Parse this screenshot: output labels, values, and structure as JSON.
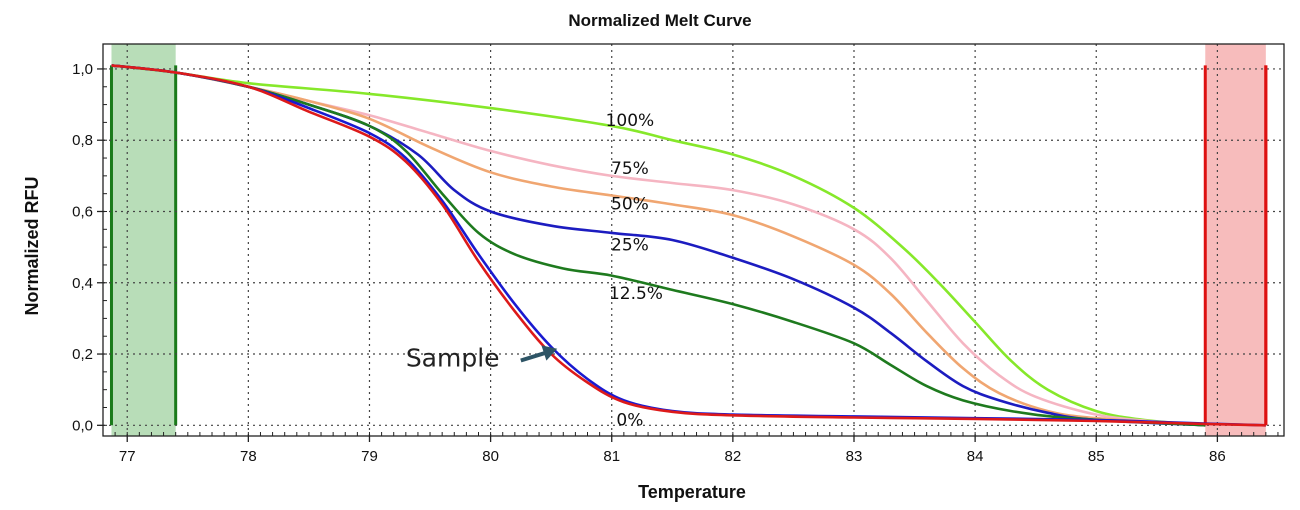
{
  "chart_data": {
    "type": "line",
    "title": "Normalized Melt Curve",
    "xlabel": "Temperature",
    "ylabel": "Normalized RFU",
    "xlim": [
      76.8,
      86.55
    ],
    "ylim": [
      -0.03,
      1.07
    ],
    "xticks": [
      77,
      78,
      79,
      80,
      81,
      82,
      83,
      84,
      85,
      86
    ],
    "xtick_labels": [
      "77",
      "78",
      "79",
      "80",
      "81",
      "82",
      "83",
      "84",
      "85",
      "86"
    ],
    "yticks": [
      0.0,
      0.2,
      0.4,
      0.6,
      0.8,
      1.0
    ],
    "ytick_labels": [
      "0,0",
      "0,2",
      "0,4",
      "0,6",
      "0,8",
      "1,0"
    ],
    "grid": true,
    "regions": [
      {
        "name": "start-region",
        "x0": 76.87,
        "x1": 77.4,
        "color": "#b8ddb8",
        "border": "#1a7a1a"
      },
      {
        "name": "end-region",
        "x0": 85.9,
        "x1": 86.4,
        "color": "#f7bcbc",
        "border": "#dd1111"
      }
    ],
    "series": [
      {
        "name": "100%",
        "color": "#86e82a",
        "points": [
          [
            76.87,
            1.01
          ],
          [
            77.4,
            0.99
          ],
          [
            78,
            0.96
          ],
          [
            79,
            0.93
          ],
          [
            80,
            0.89
          ],
          [
            81,
            0.84
          ],
          [
            81.5,
            0.8
          ],
          [
            82,
            0.76
          ],
          [
            82.5,
            0.7
          ],
          [
            83,
            0.61
          ],
          [
            83.4,
            0.5
          ],
          [
            83.7,
            0.4
          ],
          [
            84,
            0.29
          ],
          [
            84.3,
            0.18
          ],
          [
            84.6,
            0.1
          ],
          [
            85,
            0.04
          ],
          [
            85.4,
            0.015
          ],
          [
            85.9,
            0.0
          ]
        ]
      },
      {
        "name": "75%",
        "color": "#f5b5c2",
        "points": [
          [
            76.87,
            1.01
          ],
          [
            77.4,
            0.99
          ],
          [
            78,
            0.95
          ],
          [
            78.5,
            0.91
          ],
          [
            79,
            0.87
          ],
          [
            79.5,
            0.82
          ],
          [
            80,
            0.77
          ],
          [
            80.5,
            0.73
          ],
          [
            81,
            0.7
          ],
          [
            81.5,
            0.68
          ],
          [
            82,
            0.66
          ],
          [
            82.5,
            0.62
          ],
          [
            83,
            0.55
          ],
          [
            83.3,
            0.47
          ],
          [
            83.6,
            0.35
          ],
          [
            83.9,
            0.23
          ],
          [
            84.2,
            0.14
          ],
          [
            84.5,
            0.08
          ],
          [
            85,
            0.03
          ],
          [
            85.5,
            0.01
          ],
          [
            85.9,
            0.0
          ]
        ]
      },
      {
        "name": "50%",
        "color": "#f0a671",
        "points": [
          [
            76.87,
            1.01
          ],
          [
            77.4,
            0.99
          ],
          [
            78,
            0.95
          ],
          [
            78.5,
            0.91
          ],
          [
            79,
            0.86
          ],
          [
            79.5,
            0.78
          ],
          [
            80,
            0.71
          ],
          [
            80.5,
            0.67
          ],
          [
            81,
            0.645
          ],
          [
            81.5,
            0.62
          ],
          [
            82,
            0.59
          ],
          [
            82.5,
            0.53
          ],
          [
            83,
            0.45
          ],
          [
            83.3,
            0.37
          ],
          [
            83.6,
            0.26
          ],
          [
            83.9,
            0.16
          ],
          [
            84.2,
            0.09
          ],
          [
            84.6,
            0.04
          ],
          [
            85,
            0.02
          ],
          [
            85.9,
            0.0
          ]
        ]
      },
      {
        "name": "25%",
        "color": "#1c1cc0",
        "points": [
          [
            76.87,
            1.01
          ],
          [
            77.4,
            0.99
          ],
          [
            78,
            0.95
          ],
          [
            78.5,
            0.9
          ],
          [
            79,
            0.84
          ],
          [
            79.4,
            0.76
          ],
          [
            79.7,
            0.66
          ],
          [
            80,
            0.6
          ],
          [
            80.5,
            0.56
          ],
          [
            81,
            0.54
          ],
          [
            81.5,
            0.52
          ],
          [
            82,
            0.47
          ],
          [
            82.5,
            0.41
          ],
          [
            83,
            0.33
          ],
          [
            83.3,
            0.26
          ],
          [
            83.6,
            0.18
          ],
          [
            83.9,
            0.11
          ],
          [
            84.2,
            0.07
          ],
          [
            84.6,
            0.035
          ],
          [
            85,
            0.015
          ],
          [
            85.9,
            0.0
          ]
        ]
      },
      {
        "name": "12.5%",
        "color": "#1e7a1e",
        "points": [
          [
            76.87,
            1.01
          ],
          [
            77.4,
            0.99
          ],
          [
            78,
            0.95
          ],
          [
            78.5,
            0.9
          ],
          [
            79,
            0.84
          ],
          [
            79.3,
            0.77
          ],
          [
            79.6,
            0.65
          ],
          [
            79.9,
            0.54
          ],
          [
            80.2,
            0.48
          ],
          [
            80.6,
            0.44
          ],
          [
            81,
            0.42
          ],
          [
            81.5,
            0.38
          ],
          [
            82,
            0.34
          ],
          [
            82.5,
            0.29
          ],
          [
            83,
            0.23
          ],
          [
            83.3,
            0.17
          ],
          [
            83.6,
            0.11
          ],
          [
            83.9,
            0.07
          ],
          [
            84.3,
            0.04
          ],
          [
            84.8,
            0.02
          ],
          [
            85.9,
            0.0
          ]
        ]
      },
      {
        "name": "0%",
        "color": "#1a1ad0",
        "points": [
          [
            76.87,
            1.01
          ],
          [
            77.4,
            0.99
          ],
          [
            78,
            0.95
          ],
          [
            78.5,
            0.89
          ],
          [
            79,
            0.82
          ],
          [
            79.3,
            0.75
          ],
          [
            79.6,
            0.63
          ],
          [
            79.9,
            0.48
          ],
          [
            80.2,
            0.34
          ],
          [
            80.5,
            0.22
          ],
          [
            80.8,
            0.13
          ],
          [
            81.1,
            0.07
          ],
          [
            81.5,
            0.04
          ],
          [
            82,
            0.03
          ],
          [
            83,
            0.025
          ],
          [
            84,
            0.02
          ],
          [
            85,
            0.015
          ],
          [
            85.9,
            0.005
          ],
          [
            86.4,
            0.0
          ]
        ]
      },
      {
        "name": "Sample",
        "color": "#dd1a1a",
        "points": [
          [
            76.87,
            1.01
          ],
          [
            77.4,
            0.99
          ],
          [
            78,
            0.95
          ],
          [
            78.5,
            0.88
          ],
          [
            79,
            0.81
          ],
          [
            79.3,
            0.74
          ],
          [
            79.6,
            0.62
          ],
          [
            79.9,
            0.46
          ],
          [
            80.2,
            0.32
          ],
          [
            80.5,
            0.2
          ],
          [
            80.8,
            0.12
          ],
          [
            81.1,
            0.065
          ],
          [
            81.5,
            0.038
          ],
          [
            82,
            0.028
          ],
          [
            83,
            0.022
          ],
          [
            84,
            0.018
          ],
          [
            85,
            0.012
          ],
          [
            85.9,
            0.004
          ],
          [
            86.4,
            0.0
          ]
        ]
      }
    ],
    "annotations": [
      {
        "text": "100%",
        "x": 81.15,
        "y": 0.84
      },
      {
        "text": "75%",
        "x": 81.15,
        "y": 0.705
      },
      {
        "text": "50%",
        "x": 81.15,
        "y": 0.605
      },
      {
        "text": "25%",
        "x": 81.15,
        "y": 0.49
      },
      {
        "text": "12.5%",
        "x": 81.2,
        "y": 0.355
      },
      {
        "text": "0%",
        "x": 81.15,
        "y": 0.0
      }
    ],
    "callout": {
      "text": "Sample",
      "text_x": 79.3,
      "text_y": 0.165,
      "arrow_to_x": 80.55,
      "arrow_to_y": 0.215
    }
  }
}
